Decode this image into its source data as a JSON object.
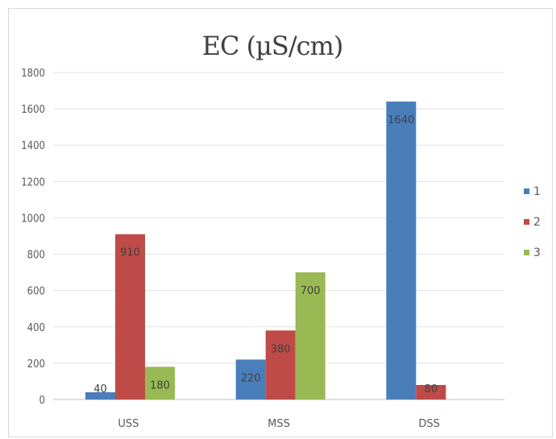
{
  "chart_data": {
    "type": "bar",
    "title": "EC (µS/cm)",
    "xlabel": "",
    "ylabel": "",
    "categories": [
      "USS",
      "MSS",
      "DSS"
    ],
    "ylim": [
      0,
      1800
    ],
    "yticks": [
      0,
      200,
      400,
      600,
      800,
      1000,
      1200,
      1400,
      1600,
      1800
    ],
    "grid": true,
    "legend_position": "right",
    "series": [
      {
        "name": "1",
        "color": "#4a7ebb",
        "values": [
          40,
          220,
          1640
        ],
        "labels": [
          "40",
          "220",
          "1640"
        ]
      },
      {
        "name": "2",
        "color": "#be4b48",
        "values": [
          910,
          380,
          80
        ],
        "labels": [
          "910",
          "380",
          "80"
        ]
      },
      {
        "name": "3",
        "color": "#98b954",
        "values": [
          180,
          700,
          null
        ],
        "labels": [
          "180",
          "700",
          ""
        ]
      }
    ]
  }
}
